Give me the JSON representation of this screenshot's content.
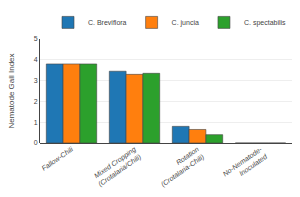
{
  "chart_data": {
    "type": "bar",
    "categories": [
      "Fallow-Chili",
      "Mixed Cropping\n(Crotalaria/Chili)",
      "Rotation\n(Crotalaria-Chili)",
      "No-Nematode-\nInoculated"
    ],
    "series": [
      {
        "name": "C. Breviflora",
        "values": [
          3.8,
          3.45,
          0.8,
          0.0
        ]
      },
      {
        "name": "C. juncia",
        "values": [
          3.8,
          3.3,
          0.65,
          0.0
        ]
      },
      {
        "name": "C. spectabilis",
        "values": [
          3.8,
          3.35,
          0.4,
          0.0
        ]
      }
    ],
    "ylabel": "Nematode Gall Index",
    "ylim": [
      0,
      5
    ],
    "yticks": [
      0,
      1,
      2,
      3,
      4,
      5
    ],
    "grid": true,
    "legend": "upper right"
  }
}
